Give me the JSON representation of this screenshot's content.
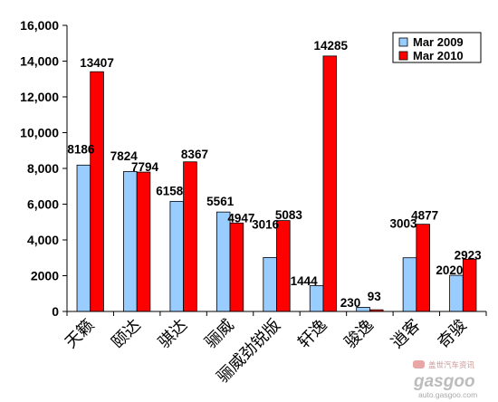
{
  "chart_data": {
    "type": "bar",
    "categories": [
      "天籁",
      "颐达",
      "骐达",
      "骊威",
      "骊威劲锐版",
      "轩逸",
      "骏逸",
      "逍客",
      "奇骏"
    ],
    "series": [
      {
        "name": "Mar 2009",
        "color": "#99ccff",
        "values": [
          8186,
          7824,
          6158,
          5561,
          3016,
          1444,
          230,
          3003,
          2020
        ]
      },
      {
        "name": "Mar 2010",
        "color": "#ff0000",
        "values": [
          13407,
          7794,
          8367,
          4947,
          5083,
          14285,
          93,
          4877,
          2923
        ]
      }
    ],
    "ylim": [
      0,
      16000
    ],
    "yticks": [
      0,
      2000,
      4000,
      6000,
      8000,
      10000,
      12000,
      14000,
      16000
    ],
    "ytick_labels": [
      "0",
      "2000",
      "4,000",
      "6,000",
      "8,000",
      "10,000",
      "12,000",
      "14,000",
      "16,000"
    ],
    "value_labels": true,
    "grid": false,
    "legend": "top-right",
    "bar_outline_color": "#000000"
  },
  "watermark": {
    "tagline": "盖世汽车资讯",
    "logo_text": "gasgoo",
    "url": "auto.gasgoo.com"
  }
}
